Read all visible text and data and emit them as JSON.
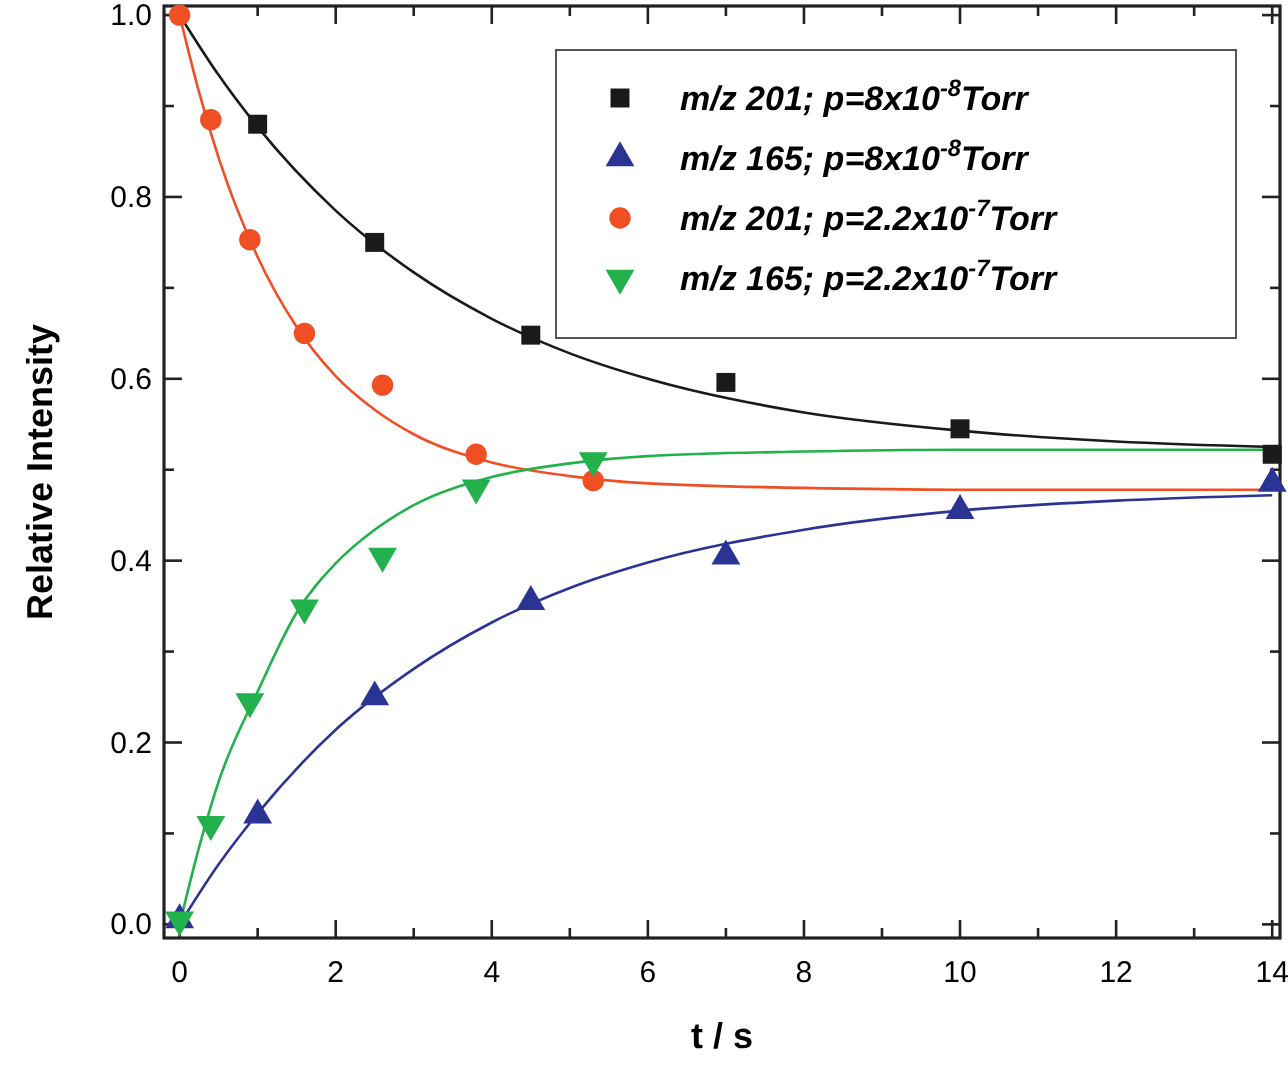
{
  "chart_data": {
    "type": "scatter",
    "xlabel": "t / s",
    "ylabel": "Relative Intensity",
    "xlim": [
      -0.2,
      14.1
    ],
    "ylim": [
      -0.015,
      1.01
    ],
    "xticks": [
      0,
      {
        "value": 1,
        "label": null
      },
      2,
      {
        "value": 3,
        "label": null
      },
      4,
      {
        "value": 5,
        "label": null
      },
      6,
      {
        "value": 7,
        "label": null
      },
      8,
      {
        "value": 9,
        "label": null
      },
      10,
      {
        "value": 11,
        "label": null
      },
      12,
      {
        "value": 13,
        "label": null
      },
      14
    ],
    "yticks": [
      {
        "value": 0,
        "label": "0.0"
      },
      {
        "value": 0.1,
        "label": null
      },
      0.2,
      {
        "value": 0.3,
        "label": null
      },
      0.4,
      {
        "value": 0.5,
        "label": null
      },
      0.6,
      {
        "value": 0.7,
        "label": null
      },
      0.8,
      {
        "value": 0.9,
        "label": null
      },
      {
        "value": 1,
        "label": "1.0"
      }
    ],
    "grid": false,
    "legend": "top right",
    "series": [
      {
        "name": "m/z 201; p=8x10$^{-8}$Torr",
        "color": "#1a1a1a",
        "marker": "square",
        "x": [
          1,
          2.5,
          4.5,
          7,
          10,
          14
        ],
        "values": [
          0.88,
          0.75,
          0.648,
          0.596,
          0.545,
          0.517
        ]
      },
      {
        "name": "m/z 165; p=8x10$^{-8}$Torr",
        "color": "#2b3495",
        "marker": "triangle",
        "x": [
          0,
          1,
          2.5,
          4.5,
          7,
          10,
          14
        ],
        "values": [
          0.005,
          0.12,
          0.25,
          0.355,
          0.405,
          0.455,
          0.485
        ]
      },
      {
        "name": "m/z 201; p=2.2x10$^{-7}$Torr",
        "color": "#f04e23",
        "marker": "circle",
        "x": [
          0,
          0.4,
          0.9,
          1.6,
          2.6,
          3.8,
          5.3
        ],
        "values": [
          1.0,
          0.885,
          0.753,
          0.65,
          0.593,
          0.517,
          0.488
        ]
      },
      {
        "name": "m/z 165; p=2.2x10$^{-7}$Torr",
        "color": "#22b14c",
        "marker": "triangle-down",
        "x": [
          0,
          0.4,
          0.9,
          1.6,
          2.6,
          3.8,
          5.3
        ],
        "values": [
          0.005,
          0.11,
          0.245,
          0.348,
          0.405,
          0.48,
          0.51
        ]
      },
      {
        "type": "line",
        "color": "#1a1a1a",
        "x": [
          0,
          0.5,
          1,
          2,
          3,
          4,
          5,
          6,
          8,
          10,
          12,
          14
        ],
        "values": [
          1.0,
          0.934,
          0.877,
          0.785,
          0.717,
          0.666,
          0.628,
          0.6,
          0.563,
          0.543,
          0.531,
          0.525
        ]
      },
      {
        "type": "line",
        "color": "#2b3495",
        "x": [
          0,
          0.5,
          1,
          2,
          3,
          4,
          5,
          6,
          8,
          10,
          12,
          14
        ],
        "values": [
          0,
          0.066,
          0.122,
          0.214,
          0.281,
          0.332,
          0.37,
          0.398,
          0.434,
          0.455,
          0.466,
          0.472
        ]
      },
      {
        "type": "line",
        "color": "#f04e23",
        "x": [
          0,
          0.25,
          0.5,
          1,
          1.5,
          2,
          2.5,
          3,
          4,
          5,
          6,
          8,
          10,
          14
        ],
        "values": [
          1.0,
          0.915,
          0.843,
          0.734,
          0.657,
          0.603,
          0.566,
          0.539,
          0.508,
          0.493,
          0.485,
          0.48,
          0.478,
          0.478
        ]
      },
      {
        "type": "line",
        "color": "#22b14c",
        "x": [
          0,
          0.25,
          0.5,
          1,
          1.5,
          2,
          2.5,
          3,
          4,
          5,
          6,
          8,
          10,
          14
        ],
        "values": [
          0,
          0.085,
          0.157,
          0.256,
          0.343,
          0.397,
          0.434,
          0.461,
          0.492,
          0.507,
          0.515,
          0.52,
          0.522,
          0.522
        ]
      }
    ]
  }
}
